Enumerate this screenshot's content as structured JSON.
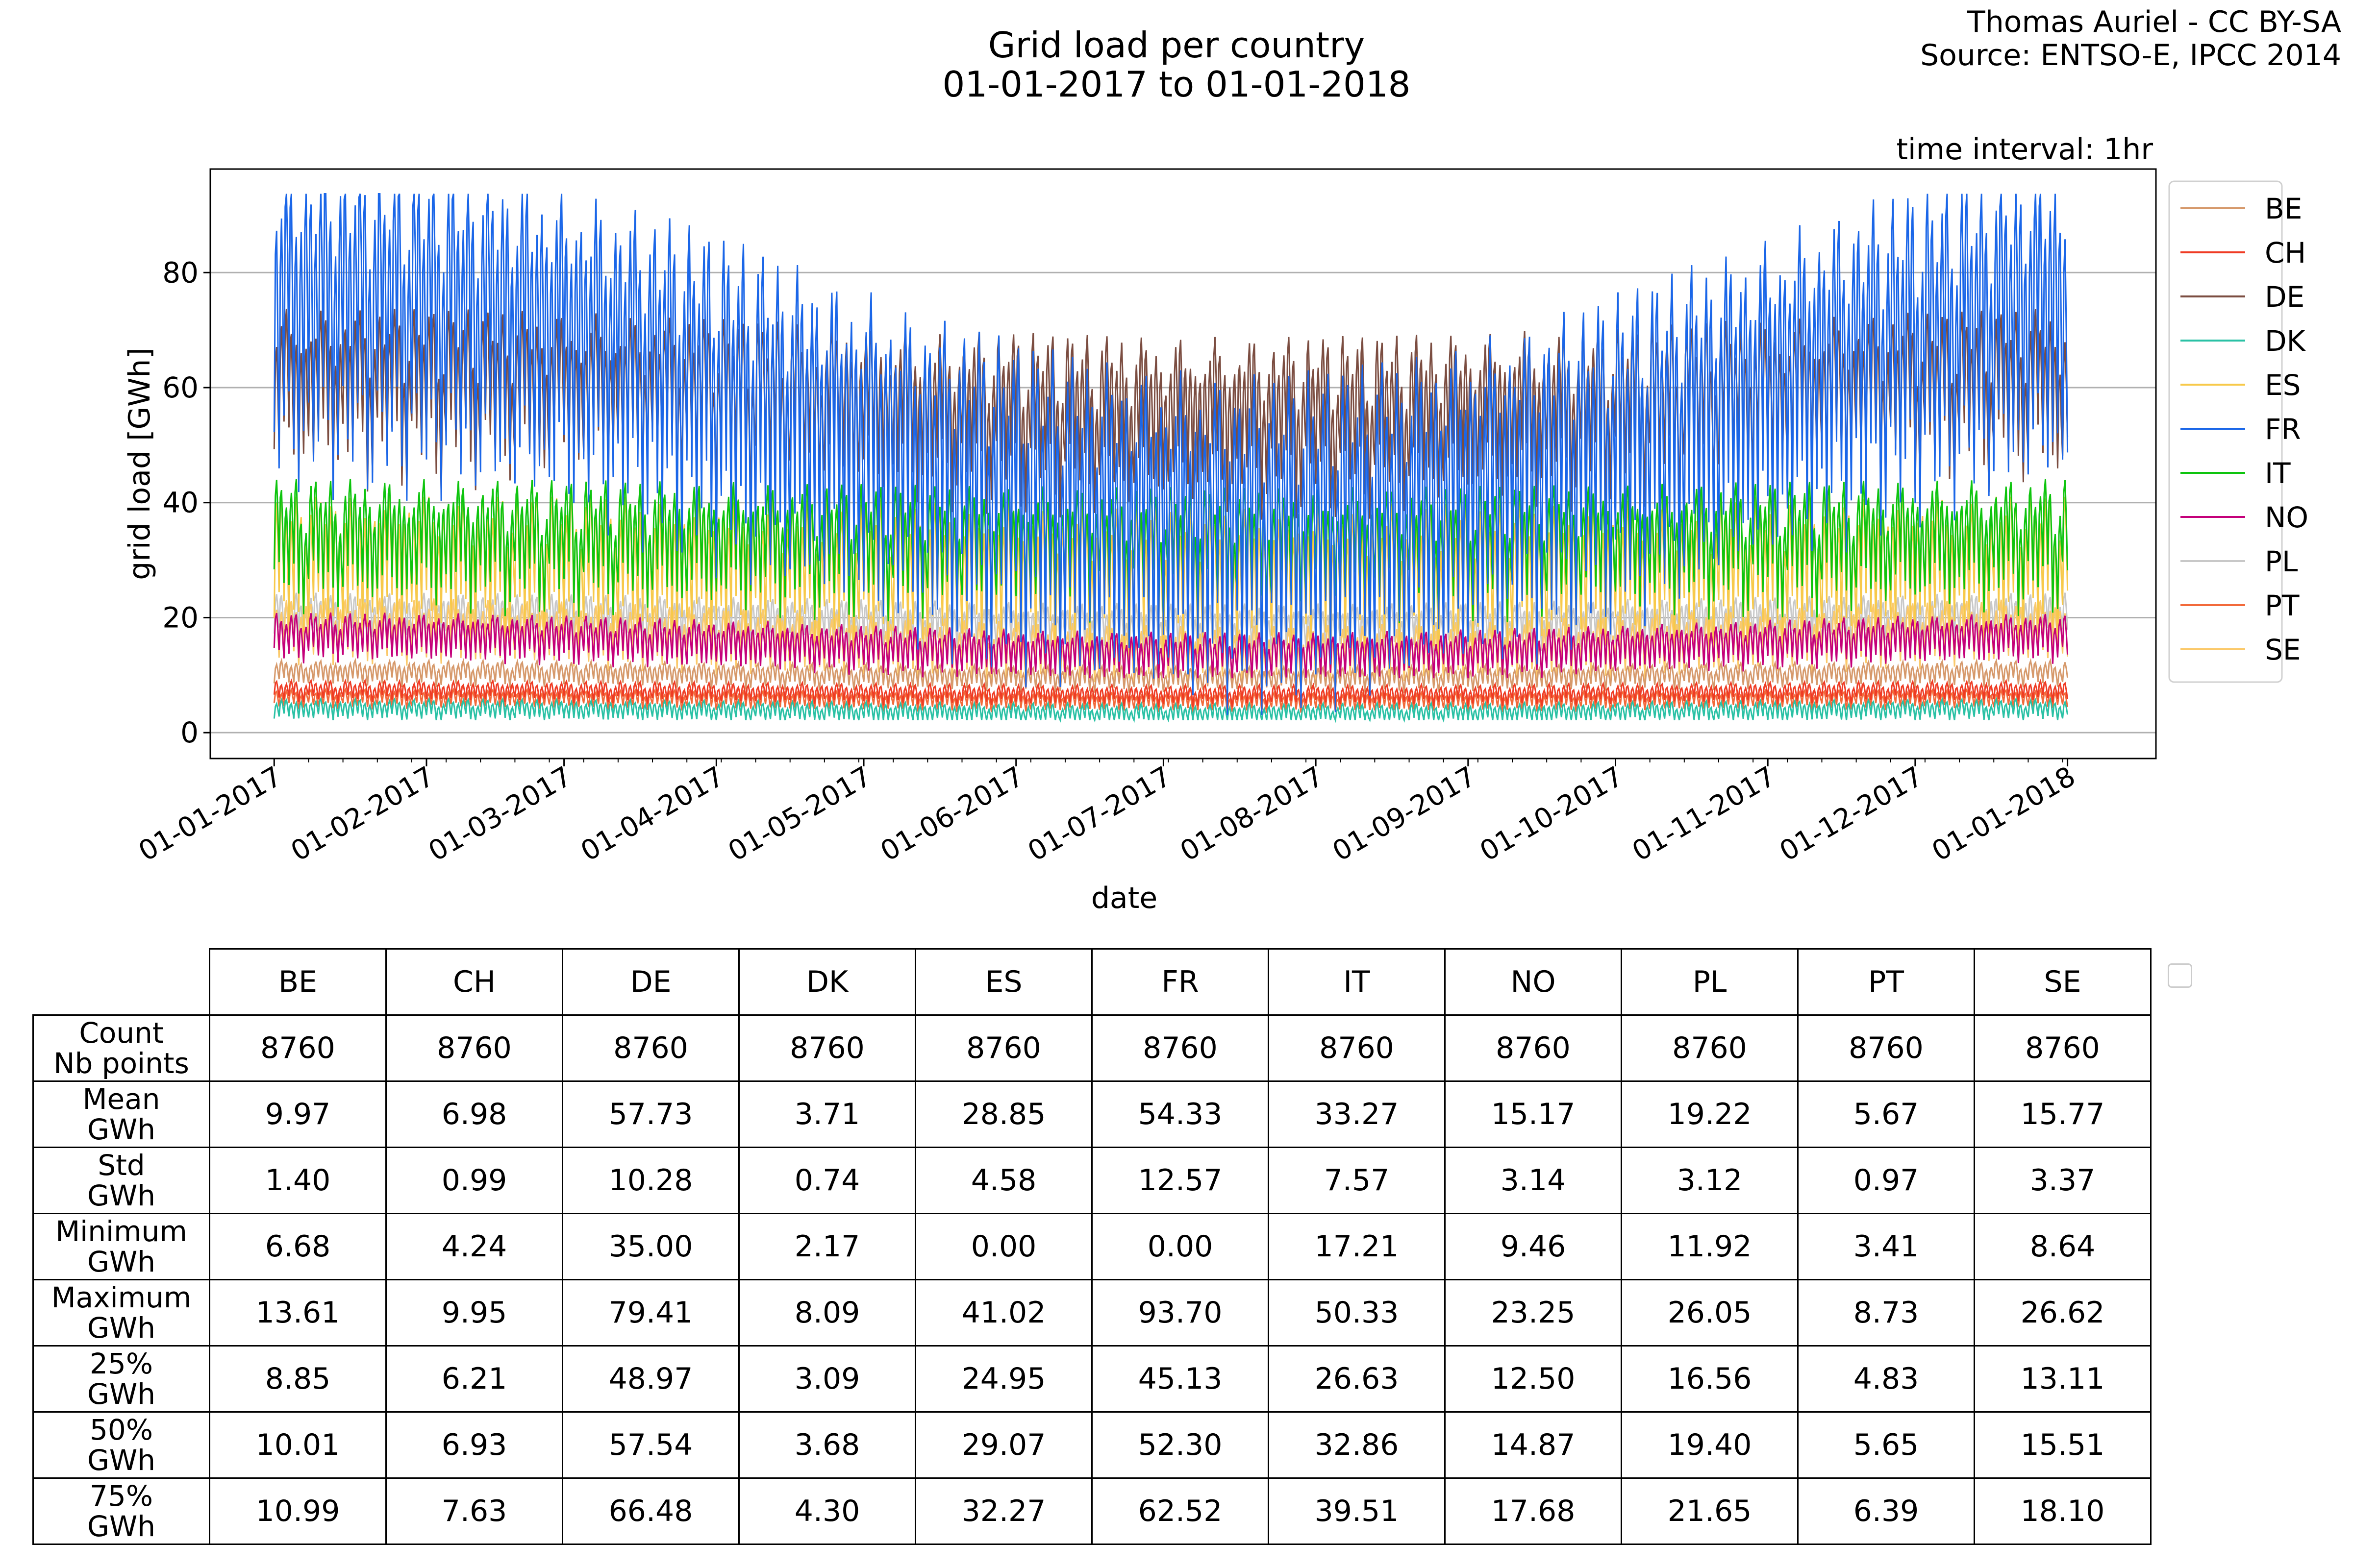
{
  "header": {
    "title_line1": "Grid load per country",
    "title_line2": "01-01-2017 to 01-01-2018",
    "credit_line1": "Thomas Auriel - CC BY-SA",
    "credit_line2": "Source: ENTSO-E, IPCC 2014",
    "interval": "time interval: 1hr"
  },
  "chart_data": {
    "type": "line",
    "xlabel": "date",
    "ylabel": "grid load [GWh]",
    "ylim": [
      -4.5,
      98
    ],
    "y_ticks": [
      0,
      20,
      40,
      60,
      80
    ],
    "x_ticks": [
      "01-01-2017",
      "01-02-2017",
      "01-03-2017",
      "01-04-2017",
      "01-05-2017",
      "01-06-2017",
      "01-07-2017",
      "01-08-2017",
      "01-09-2017",
      "01-10-2017",
      "01-11-2017",
      "01-12-2017",
      "01-01-2018"
    ],
    "xlim": [
      "2016-12-19",
      "2018-01-19"
    ],
    "grid": "horizontal",
    "legend_position": "outside-right",
    "series": [
      {
        "name": "BE",
        "color": "#d6996b",
        "mean": 9.97,
        "min": 6.68,
        "max": 13.61
      },
      {
        "name": "CH",
        "color": "#ef3b24",
        "mean": 6.98,
        "min": 4.24,
        "max": 9.95
      },
      {
        "name": "DE",
        "color": "#7b4d41",
        "mean": 57.73,
        "min": 35.0,
        "max": 79.41
      },
      {
        "name": "DK",
        "color": "#2ac1a5",
        "mean": 3.71,
        "min": 2.17,
        "max": 8.09
      },
      {
        "name": "ES",
        "color": "#f7c94a",
        "mean": 28.85,
        "min": 0.0,
        "max": 41.02
      },
      {
        "name": "FR",
        "color": "#1a66e8",
        "mean": 54.33,
        "min": 0.0,
        "max": 93.7
      },
      {
        "name": "IT",
        "color": "#0ec40e",
        "mean": 33.27,
        "min": 17.21,
        "max": 50.33
      },
      {
        "name": "NO",
        "color": "#c4007a",
        "mean": 15.17,
        "min": 9.46,
        "max": 23.25
      },
      {
        "name": "PL",
        "color": "#c8c8c8",
        "mean": 19.22,
        "min": 11.92,
        "max": 26.05
      },
      {
        "name": "PT",
        "color": "#f26a3b",
        "mean": 5.67,
        "min": 3.41,
        "max": 8.73
      },
      {
        "name": "SE",
        "color": "#fbc96a",
        "mean": 15.77,
        "min": 8.64,
        "max": 26.62
      }
    ]
  },
  "table": {
    "columns": [
      "BE",
      "CH",
      "DE",
      "DK",
      "ES",
      "FR",
      "IT",
      "NO",
      "PL",
      "PT",
      "SE"
    ],
    "rows": [
      {
        "label1": "Count",
        "label2": "Nb points",
        "values": [
          "8760",
          "8760",
          "8760",
          "8760",
          "8760",
          "8760",
          "8760",
          "8760",
          "8760",
          "8760",
          "8760"
        ]
      },
      {
        "label1": "Mean",
        "label2": "GWh",
        "values": [
          "9.97",
          "6.98",
          "57.73",
          "3.71",
          "28.85",
          "54.33",
          "33.27",
          "15.17",
          "19.22",
          "5.67",
          "15.77"
        ]
      },
      {
        "label1": "Std",
        "label2": "GWh",
        "values": [
          "1.40",
          "0.99",
          "10.28",
          "0.74",
          "4.58",
          "12.57",
          "7.57",
          "3.14",
          "3.12",
          "0.97",
          "3.37"
        ]
      },
      {
        "label1": "Minimum",
        "label2": "GWh",
        "values": [
          "6.68",
          "4.24",
          "35.00",
          "2.17",
          "0.00",
          "0.00",
          "17.21",
          "9.46",
          "11.92",
          "3.41",
          "8.64"
        ]
      },
      {
        "label1": "Maximum",
        "label2": "GWh",
        "values": [
          "13.61",
          "9.95",
          "79.41",
          "8.09",
          "41.02",
          "93.70",
          "50.33",
          "23.25",
          "26.05",
          "8.73",
          "26.62"
        ]
      },
      {
        "label1": "25%",
        "label2": "GWh",
        "values": [
          "8.85",
          "6.21",
          "48.97",
          "3.09",
          "24.95",
          "45.13",
          "26.63",
          "12.50",
          "16.56",
          "4.83",
          "13.11"
        ]
      },
      {
        "label1": "50%",
        "label2": "GWh",
        "values": [
          "10.01",
          "6.93",
          "57.54",
          "3.68",
          "29.07",
          "52.30",
          "32.86",
          "14.87",
          "19.40",
          "5.65",
          "15.51"
        ]
      },
      {
        "label1": "75%",
        "label2": "GWh",
        "values": [
          "10.99",
          "7.63",
          "66.48",
          "4.30",
          "32.27",
          "62.52",
          "39.51",
          "17.68",
          "21.65",
          "6.39",
          "18.10"
        ]
      }
    ]
  }
}
